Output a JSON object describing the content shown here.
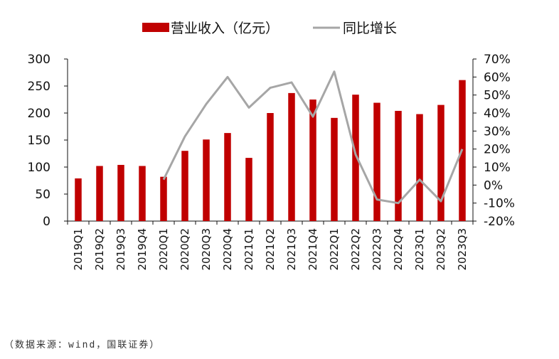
{
  "chart_data": {
    "type": "bar",
    "categories": [
      "2019Q1",
      "2019Q2",
      "2019Q3",
      "2019Q4",
      "2020Q1",
      "2020Q2",
      "2020Q3",
      "2020Q4",
      "2021Q1",
      "2021Q2",
      "2021Q3",
      "2021Q4",
      "2022Q1",
      "2022Q2",
      "2022Q3",
      "2022Q4",
      "2023Q1",
      "2023Q2",
      "2023Q3"
    ],
    "series": [
      {
        "name": "营业收入（亿元）",
        "type": "bar",
        "axis": "left",
        "color": "#C00000",
        "values": [
          79,
          102,
          104,
          102,
          82,
          130,
          151,
          163,
          117,
          200,
          237,
          225,
          191,
          234,
          219,
          204,
          198,
          215,
          261
        ]
      },
      {
        "name": "同比增长",
        "type": "line",
        "axis": "right",
        "color": "#A6A6A6",
        "values": [
          null,
          null,
          null,
          null,
          0.03,
          0.27,
          0.45,
          0.6,
          0.43,
          0.54,
          0.57,
          0.38,
          0.63,
          0.17,
          -0.08,
          -0.1,
          0.03,
          -0.09,
          0.2
        ]
      }
    ],
    "y_left": {
      "ylim": [
        0,
        300
      ],
      "ticks": [
        "0",
        "50",
        "100",
        "150",
        "200",
        "250",
        "300"
      ]
    },
    "y_right": {
      "ylim": [
        -0.2,
        0.7
      ],
      "ticks": [
        "-20%",
        "-10%",
        "0%",
        "10%",
        "20%",
        "30%",
        "40%",
        "50%",
        "60%",
        "70%"
      ]
    },
    "legend_position": "top-center",
    "grid": false
  },
  "legend": {
    "bar_label": "营业收入（亿元）",
    "line_label": "同比增长"
  },
  "source_note": "（数据来源：wind，国联证券）"
}
